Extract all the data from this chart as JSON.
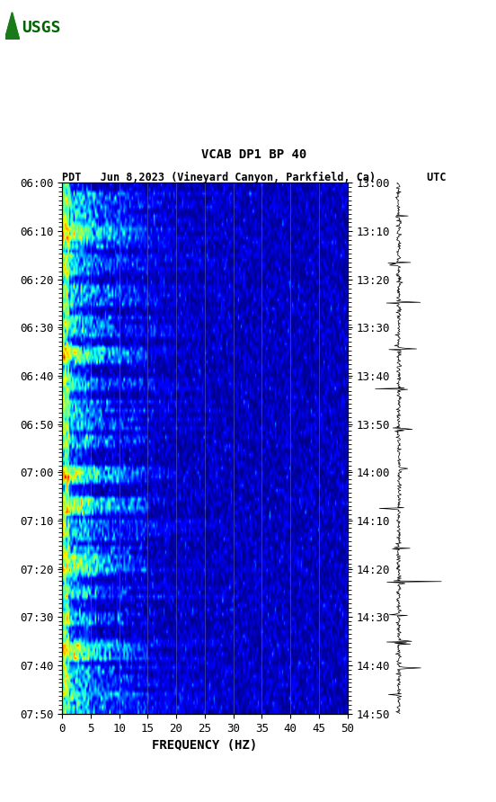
{
  "title_line1": "VCAB DP1 BP 40",
  "title_line2": "PDT   Jun 8,2023 (Vineyard Canyon, Parkfield, Ca)        UTC",
  "xlabel": "FREQUENCY (HZ)",
  "left_yticks": [
    "06:00",
    "06:10",
    "06:20",
    "06:30",
    "06:40",
    "06:50",
    "07:00",
    "07:10",
    "07:20",
    "07:30",
    "07:40",
    "07:50"
  ],
  "right_yticks": [
    "13:00",
    "13:10",
    "13:20",
    "13:30",
    "13:40",
    "13:50",
    "14:00",
    "14:10",
    "14:20",
    "14:30",
    "14:40",
    "14:50"
  ],
  "xticks": [
    0,
    5,
    10,
    15,
    20,
    25,
    30,
    35,
    40,
    45,
    50
  ],
  "freq_min": 0,
  "freq_max": 50,
  "time_steps": 120,
  "freq_bins": 200,
  "bg_color": "#ffffff",
  "spectrogram_colormap": "jet",
  "grid_color": "#808080",
  "grid_alpha": 0.5,
  "tick_label_fontsize": 9,
  "title_fontsize": 10,
  "logo_color": "#006400",
  "waveform_color": "#000000"
}
